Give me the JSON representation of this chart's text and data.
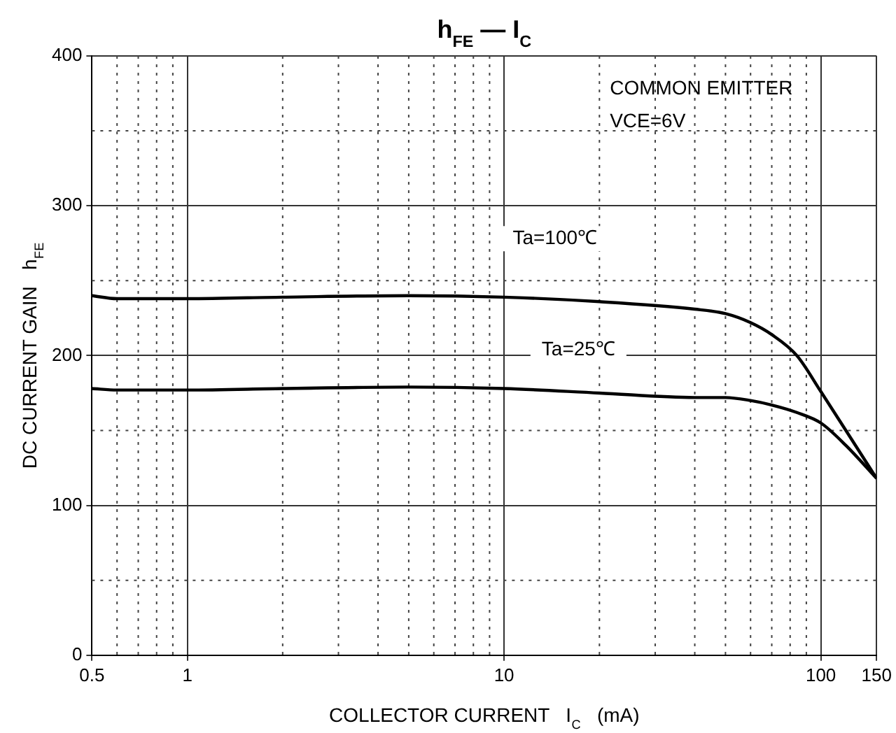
{
  "chart_data": {
    "type": "line",
    "title": "h$_{FE}$ — I$_{C}$",
    "xlabel": "COLLECTOR CURRENT   I$_{C}$   (mA)",
    "ylabel": "DC CURRENT GAIN   h$_{FE}$",
    "log": "x",
    "xlim": [
      0.5,
      150
    ],
    "xticks": [
      0.5,
      1,
      10,
      100,
      150
    ],
    "ylim": [
      0,
      400
    ],
    "yticks": [
      0,
      100,
      200,
      300,
      400
    ],
    "grid": true,
    "legend": false,
    "marker": "none",
    "line_style": "solid",
    "series": [
      {
        "color": "#000000",
        "x": [
          0.5,
          0.6,
          1,
          2,
          5,
          10,
          20,
          40,
          50,
          60,
          70,
          84,
          100,
          120,
          150
        ],
        "values": [
          240,
          238,
          238,
          239,
          240,
          239,
          236,
          231,
          228,
          222,
          214,
          200,
          176,
          150,
          118
        ]
      },
      {
        "color": "#000000",
        "x": [
          0.5,
          0.6,
          1,
          2,
          5,
          10,
          20,
          40,
          50,
          60,
          70,
          84,
          100,
          120,
          150
        ],
        "values": [
          178,
          177,
          177,
          178,
          179,
          178,
          175,
          172,
          172,
          170,
          167,
          162,
          155,
          140,
          118
        ]
      }
    ],
    "annotations": [
      "COMMON EMITTER",
      "VCE=6V",
      "Ta=100℃",
      "Ta=25℃"
    ]
  }
}
